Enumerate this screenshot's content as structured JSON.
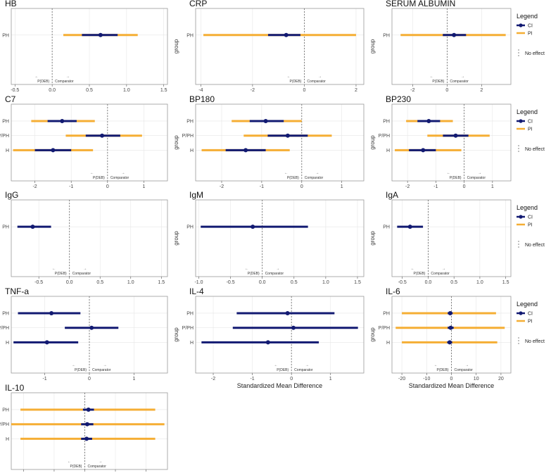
{
  "common": {
    "ylabel": "group",
    "xlabel": "Standardized Mean Difference",
    "left_direction": "P(DEB)",
    "right_direction": "Comparator",
    "left_arrow": "←",
    "right_arrow": "→"
  },
  "legend": {
    "title": "Legend",
    "ci_label": "CI",
    "pi_label": "PI",
    "no_effect_label": "No effect"
  },
  "colors": {
    "ci": "#121a72",
    "pi": "#f5ae34",
    "ref": "#666666",
    "grid": "#e6e6e6",
    "frame": "#9a9a9a"
  },
  "chart_data": [
    {
      "type": "forest",
      "title": "HB",
      "xlim": [
        -0.55,
        1.55
      ],
      "xticks": [
        -0.5,
        0,
        0.5,
        1,
        1.5
      ],
      "tick_labels": [
        "-0.5",
        "0.0",
        "0.5",
        "1.0",
        "1.5"
      ],
      "show_xlabel": false,
      "legend": false,
      "groups": [
        {
          "label": "PH",
          "est": 0.65,
          "ci": [
            0.4,
            0.88
          ],
          "pi": [
            0.15,
            1.15
          ]
        }
      ]
    },
    {
      "type": "forest",
      "title": "CRP",
      "xlim": [
        -4.2,
        2.3
      ],
      "xticks": [
        -4,
        -2,
        0,
        2
      ],
      "tick_labels": [
        "-4",
        "-2",
        "0",
        "2"
      ],
      "show_xlabel": false,
      "legend": false,
      "groups": [
        {
          "label": "PH",
          "est": -0.7,
          "ci": [
            -1.4,
            -0.15
          ],
          "pi": [
            -3.9,
            2.0
          ]
        }
      ]
    },
    {
      "type": "forest",
      "title": "SERUM ALBUMIN",
      "xlim": [
        -3.2,
        3.7
      ],
      "xticks": [
        -2,
        0,
        2
      ],
      "tick_labels": [
        "-2",
        "0",
        "2"
      ],
      "show_xlabel": false,
      "legend": true,
      "groups": [
        {
          "label": "PH",
          "est": 0.4,
          "ci": [
            -0.25,
            1.1
          ],
          "pi": [
            -2.7,
            3.4
          ]
        }
      ]
    },
    {
      "type": "forest",
      "title": "C7",
      "xlim": [
        -2.65,
        1.65
      ],
      "xticks": [
        -2,
        -1,
        0,
        1
      ],
      "tick_labels": [
        "-2",
        "-1",
        "0",
        "1"
      ],
      "show_xlabel": false,
      "legend": false,
      "groups": [
        {
          "label": "PH",
          "est": -1.25,
          "ci": [
            -1.65,
            -0.85
          ],
          "pi": [
            -2.1,
            -0.35
          ]
        },
        {
          "label": "P/PH",
          "est": -0.15,
          "ci": [
            -0.6,
            0.35
          ],
          "pi": [
            -1.15,
            0.95
          ]
        },
        {
          "label": "H",
          "est": -1.5,
          "ci": [
            -2.0,
            -1.0
          ],
          "pi": [
            -2.6,
            -0.4
          ]
        }
      ]
    },
    {
      "type": "forest",
      "title": "BP180",
      "xlim": [
        -2.65,
        1.55
      ],
      "xticks": [
        -2,
        -1,
        0,
        1
      ],
      "tick_labels": [
        "-2",
        "-1",
        "0",
        "1"
      ],
      "show_xlabel": false,
      "legend": false,
      "groups": [
        {
          "label": "PH",
          "est": -0.9,
          "ci": [
            -1.3,
            -0.45
          ],
          "pi": [
            -1.75,
            0.0
          ]
        },
        {
          "label": "P/PH",
          "est": -0.35,
          "ci": [
            -0.85,
            0.15
          ],
          "pi": [
            -1.45,
            0.75
          ]
        },
        {
          "label": "H",
          "est": -1.4,
          "ci": [
            -1.9,
            -0.9
          ],
          "pi": [
            -2.5,
            -0.3
          ]
        }
      ]
    },
    {
      "type": "forest",
      "title": "BP230",
      "xlim": [
        -2.55,
        1.65
      ],
      "xticks": [
        -2,
        -1,
        0,
        1
      ],
      "tick_labels": [
        "-2",
        "-1",
        "0",
        "1"
      ],
      "show_xlabel": false,
      "legend": true,
      "groups": [
        {
          "label": "PH",
          "est": -1.25,
          "ci": [
            -1.65,
            -0.85
          ],
          "pi": [
            -2.05,
            -0.4
          ]
        },
        {
          "label": "P/PH",
          "est": -0.3,
          "ci": [
            -0.75,
            0.15
          ],
          "pi": [
            -1.3,
            0.9
          ]
        },
        {
          "label": "H",
          "est": -1.45,
          "ci": [
            -1.95,
            -1.0
          ],
          "pi": [
            -2.45,
            -0.1
          ]
        }
      ]
    },
    {
      "type": "forest",
      "title": "IgG",
      "xlim": [
        -0.95,
        1.6
      ],
      "xticks": [
        -0.5,
        0,
        0.5,
        1,
        1.5
      ],
      "tick_labels": [
        "-0.5",
        "0.0",
        "0.5",
        "1.0",
        "1.5"
      ],
      "show_xlabel": false,
      "legend": false,
      "groups": [
        {
          "label": "PH",
          "est": -0.6,
          "ci": [
            -0.85,
            -0.3
          ],
          "pi": null
        }
      ]
    },
    {
      "type": "forest",
      "title": "IgM",
      "xlim": [
        -1.05,
        1.6
      ],
      "xticks": [
        -1,
        -0.5,
        0,
        0.5,
        1,
        1.5
      ],
      "tick_labels": [
        "-1.0",
        "-0.5",
        "0.0",
        "0.5",
        "1.0",
        "1.5"
      ],
      "show_xlabel": false,
      "legend": false,
      "groups": [
        {
          "label": "PH",
          "est": -0.15,
          "ci": [
            -0.97,
            0.72
          ],
          "pi": null
        }
      ]
    },
    {
      "type": "forest",
      "title": "IgA",
      "xlim": [
        -0.7,
        1.6
      ],
      "xticks": [
        -0.5,
        0,
        0.5,
        1,
        1.5
      ],
      "tick_labels": [
        "-0.5",
        "0.0",
        "0.5",
        "1.0",
        "1.5"
      ],
      "show_xlabel": false,
      "legend": true,
      "groups": [
        {
          "label": "PH",
          "est": -0.35,
          "ci": [
            -0.6,
            -0.1
          ],
          "pi": null
        }
      ]
    },
    {
      "type": "forest",
      "title": "TNF-a",
      "xlim": [
        -1.75,
        1.75
      ],
      "xticks": [
        -1,
        0,
        1
      ],
      "tick_labels": [
        "-1",
        "0",
        "1"
      ],
      "show_xlabel": false,
      "legend": false,
      "groups": [
        {
          "label": "PH",
          "est": -0.85,
          "ci": [
            -1.6,
            -0.2
          ],
          "pi": null
        },
        {
          "label": "P/PH",
          "est": 0.05,
          "ci": [
            -0.55,
            0.65
          ],
          "pi": null
        },
        {
          "label": "H",
          "est": -0.95,
          "ci": [
            -1.7,
            -0.25
          ],
          "pi": null
        }
      ]
    },
    {
      "type": "forest",
      "title": "IL-4",
      "xlim": [
        -2.45,
        1.85
      ],
      "xticks": [
        -2,
        -1,
        0,
        1
      ],
      "tick_labels": [
        "-2",
        "-1",
        "0",
        "1"
      ],
      "show_xlabel": true,
      "legend": false,
      "groups": [
        {
          "label": "PH",
          "est": -0.1,
          "ci": [
            -1.4,
            1.1
          ],
          "pi": null
        },
        {
          "label": "P/PH",
          "est": 0.05,
          "ci": [
            -1.5,
            1.7
          ],
          "pi": null
        },
        {
          "label": "H",
          "est": -0.6,
          "ci": [
            -2.3,
            0.7
          ],
          "pi": null
        }
      ]
    },
    {
      "type": "forest",
      "title": "IL-6",
      "xlim": [
        -24,
        24
      ],
      "xticks": [
        -20,
        -10,
        0,
        10,
        20
      ],
      "tick_labels": [
        "-20",
        "-10",
        "0",
        "10",
        "20"
      ],
      "show_xlabel": true,
      "legend": true,
      "groups": [
        {
          "label": "PH",
          "est": -0.5,
          "ci": [
            -1.5,
            0.5
          ],
          "pi": [
            -20,
            18
          ]
        },
        {
          "label": "P/PH",
          "est": -0.3,
          "ci": [
            -1.5,
            0.9
          ],
          "pi": [
            -22.5,
            21.5
          ]
        },
        {
          "label": "H",
          "est": -0.7,
          "ci": [
            -1.7,
            0.3
          ],
          "pi": [
            -20,
            18.5
          ]
        }
      ]
    },
    {
      "type": "forest",
      "title": "IL-10",
      "xlim": [
        -12,
        13.5
      ],
      "xticks": [
        -10,
        -5,
        0,
        5,
        10
      ],
      "tick_labels": [
        "-10",
        "-5",
        "0",
        "5",
        "10"
      ],
      "show_xlabel": true,
      "legend": false,
      "groups": [
        {
          "label": "PH",
          "est": 0.6,
          "ci": [
            -0.3,
            1.5
          ],
          "pi": [
            -10.5,
            11.5
          ]
        },
        {
          "label": "P/PH",
          "est": 0.4,
          "ci": [
            -0.6,
            1.4
          ],
          "pi": [
            -12,
            13
          ]
        },
        {
          "label": "H",
          "est": 0.3,
          "ci": [
            -0.6,
            1.2
          ],
          "pi": [
            -10.5,
            11.5
          ]
        }
      ]
    }
  ]
}
